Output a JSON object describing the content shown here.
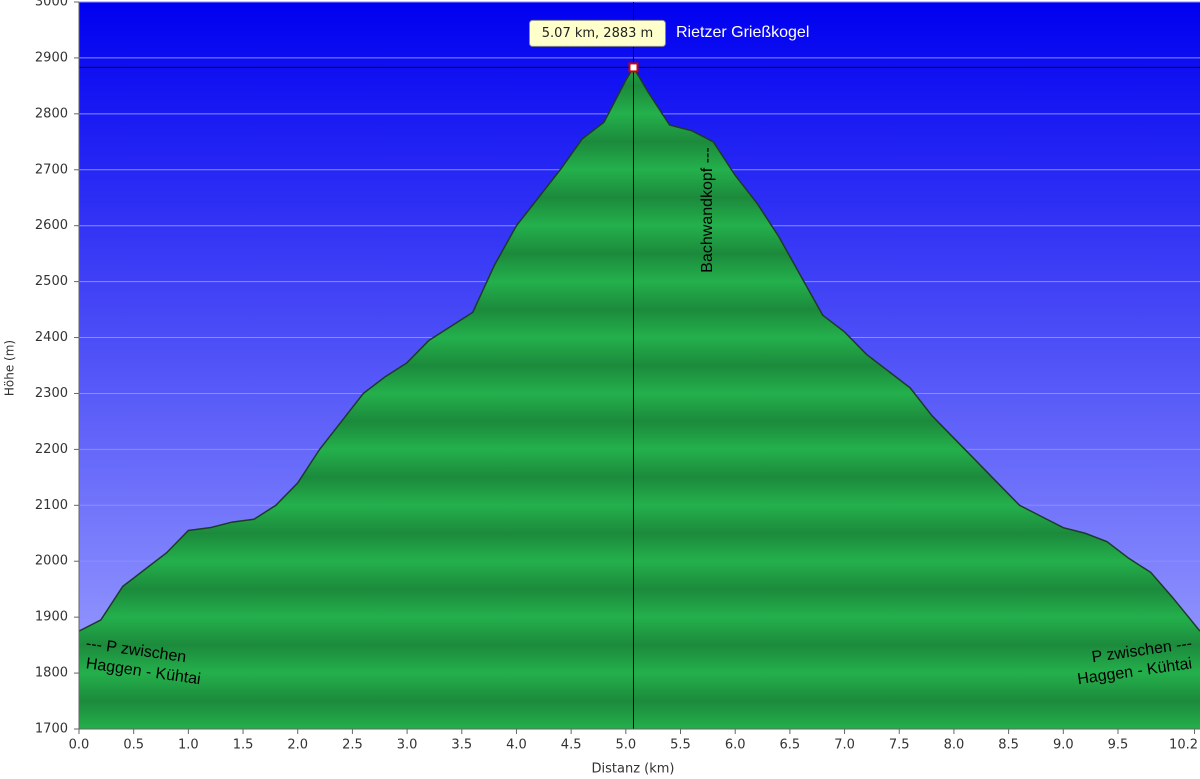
{
  "chart_data": {
    "type": "area",
    "x": [
      0.0,
      0.2,
      0.4,
      0.6,
      0.8,
      1.0,
      1.2,
      1.4,
      1.6,
      1.8,
      2.0,
      2.2,
      2.4,
      2.6,
      2.8,
      3.0,
      3.2,
      3.4,
      3.6,
      3.8,
      4.0,
      4.2,
      4.4,
      4.6,
      4.8,
      5.0,
      5.07,
      5.2,
      5.4,
      5.6,
      5.8,
      6.0,
      6.2,
      6.4,
      6.6,
      6.8,
      7.0,
      7.2,
      7.4,
      7.6,
      7.8,
      8.0,
      8.2,
      8.4,
      8.6,
      8.8,
      9.0,
      9.2,
      9.4,
      9.6,
      9.8,
      10.0,
      10.25
    ],
    "values": [
      1875,
      1895,
      1955,
      1985,
      2015,
      2055,
      2060,
      2070,
      2075,
      2100,
      2140,
      2200,
      2250,
      2300,
      2330,
      2355,
      2395,
      2420,
      2445,
      2530,
      2600,
      2650,
      2700,
      2755,
      2785,
      2860,
      2883,
      2840,
      2780,
      2770,
      2750,
      2690,
      2640,
      2580,
      2510,
      2440,
      2410,
      2370,
      2340,
      2310,
      2260,
      2220,
      2180,
      2140,
      2100,
      2080,
      2060,
      2050,
      2035,
      2005,
      1980,
      1935,
      1875
    ],
    "color": "#22a84a",
    "xlabel": "Distanz  (km)",
    "ylabel": "Höhe (m)",
    "xlim": [
      0,
      10.25
    ],
    "ylim": [
      1700,
      3000
    ],
    "xticks": [
      {
        "value": 0,
        "label": "0.0"
      },
      0.5,
      {
        "value": 1,
        "label": "1.0"
      },
      1.5,
      {
        "value": 2,
        "label": "2.0"
      },
      2.5,
      {
        "value": 3,
        "label": "3.0"
      },
      3.5,
      {
        "value": 4,
        "label": "4.0"
      },
      4.5,
      {
        "value": 5,
        "label": "5.0"
      },
      5.5,
      {
        "value": 6,
        "label": "6.0"
      },
      6.5,
      {
        "value": 7,
        "label": "7.0"
      },
      7.5,
      {
        "value": 8,
        "label": "8.0"
      },
      8.5,
      {
        "value": 9,
        "label": "9.0"
      },
      9.5,
      10.2
    ],
    "yticks": [
      1700,
      1800,
      1900,
      2000,
      2100,
      2200,
      2300,
      2400,
      2500,
      2600,
      2700,
      2800,
      2900,
      3000
    ],
    "grid": true,
    "highlight": {
      "x": 5.07,
      "y": 2883,
      "label": "5.07 km, 2883 m"
    },
    "annotations": [
      "Rietzer Grießkogel",
      "Bachwandkopf ---",
      "--- P zwischen",
      "Haggen - Kühtai",
      "P zwischen ---",
      "Haggen - Kühtai"
    ]
  }
}
